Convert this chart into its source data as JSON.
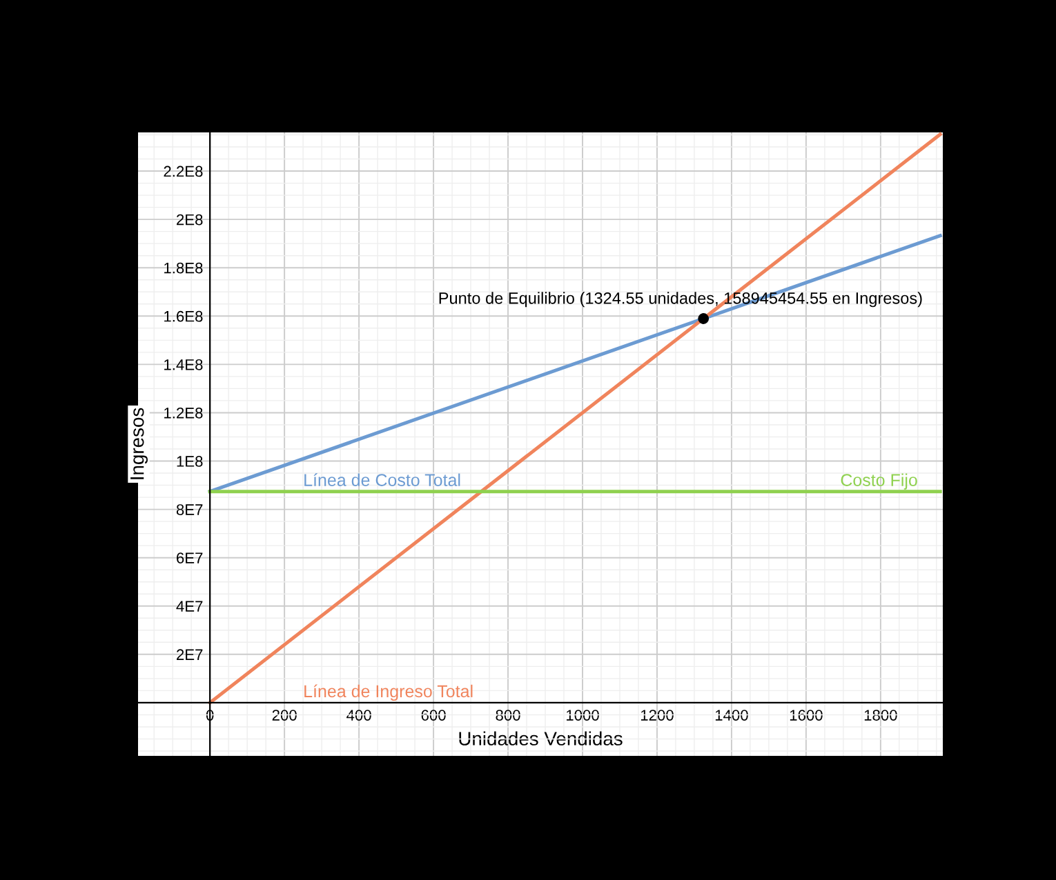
{
  "chart_data": {
    "type": "line",
    "xlabel": "Unidades Vendidas",
    "ylabel": "Ingresos",
    "xlim": [
      -193,
      1967
    ],
    "ylim": [
      -22000000,
      236000000
    ],
    "xticks": [
      0,
      200,
      400,
      600,
      800,
      1000,
      1200,
      1400,
      1600,
      1800
    ],
    "yticks": [
      {
        "value": 20000000,
        "label": "2E7"
      },
      {
        "value": 40000000,
        "label": "4E7"
      },
      {
        "value": 60000000,
        "label": "6E7"
      },
      {
        "value": 80000000,
        "label": "8E7"
      },
      {
        "value": 100000000,
        "label": "1E8"
      },
      {
        "value": 120000000,
        "label": "1.2E8"
      },
      {
        "value": 140000000,
        "label": "1.4E8"
      },
      {
        "value": 160000000,
        "label": "1.6E8"
      },
      {
        "value": 180000000,
        "label": "1.8E8"
      },
      {
        "value": 200000000,
        "label": "2E8"
      },
      {
        "value": 220000000,
        "label": "2.2E8"
      }
    ],
    "grid": true,
    "legend": false,
    "series": [
      {
        "name": "Línea de Costo Total",
        "color": "#6c9bd2",
        "x": [
          0,
          1960
        ],
        "values": [
          87400000,
          193300000
        ]
      },
      {
        "name": "Línea de Ingreso Total",
        "color": "#f0845c",
        "x": [
          0,
          1960
        ],
        "values": [
          0,
          235200000
        ]
      },
      {
        "name": "Costo Fijo",
        "color": "#8fd14f",
        "x": [
          0,
          1960
        ],
        "values": [
          87400000,
          87400000
        ]
      },
      {
        "type": "scatter",
        "color": "#000000",
        "x": [
          1324.55
        ],
        "values": [
          158945454.55
        ]
      }
    ],
    "annotations": [
      {
        "text": "Punto de Equilibrio (1324.55 unidades, 158945454.55 en Ingresos)",
        "x": 1324.55,
        "y": 158945454.55
      }
    ]
  }
}
